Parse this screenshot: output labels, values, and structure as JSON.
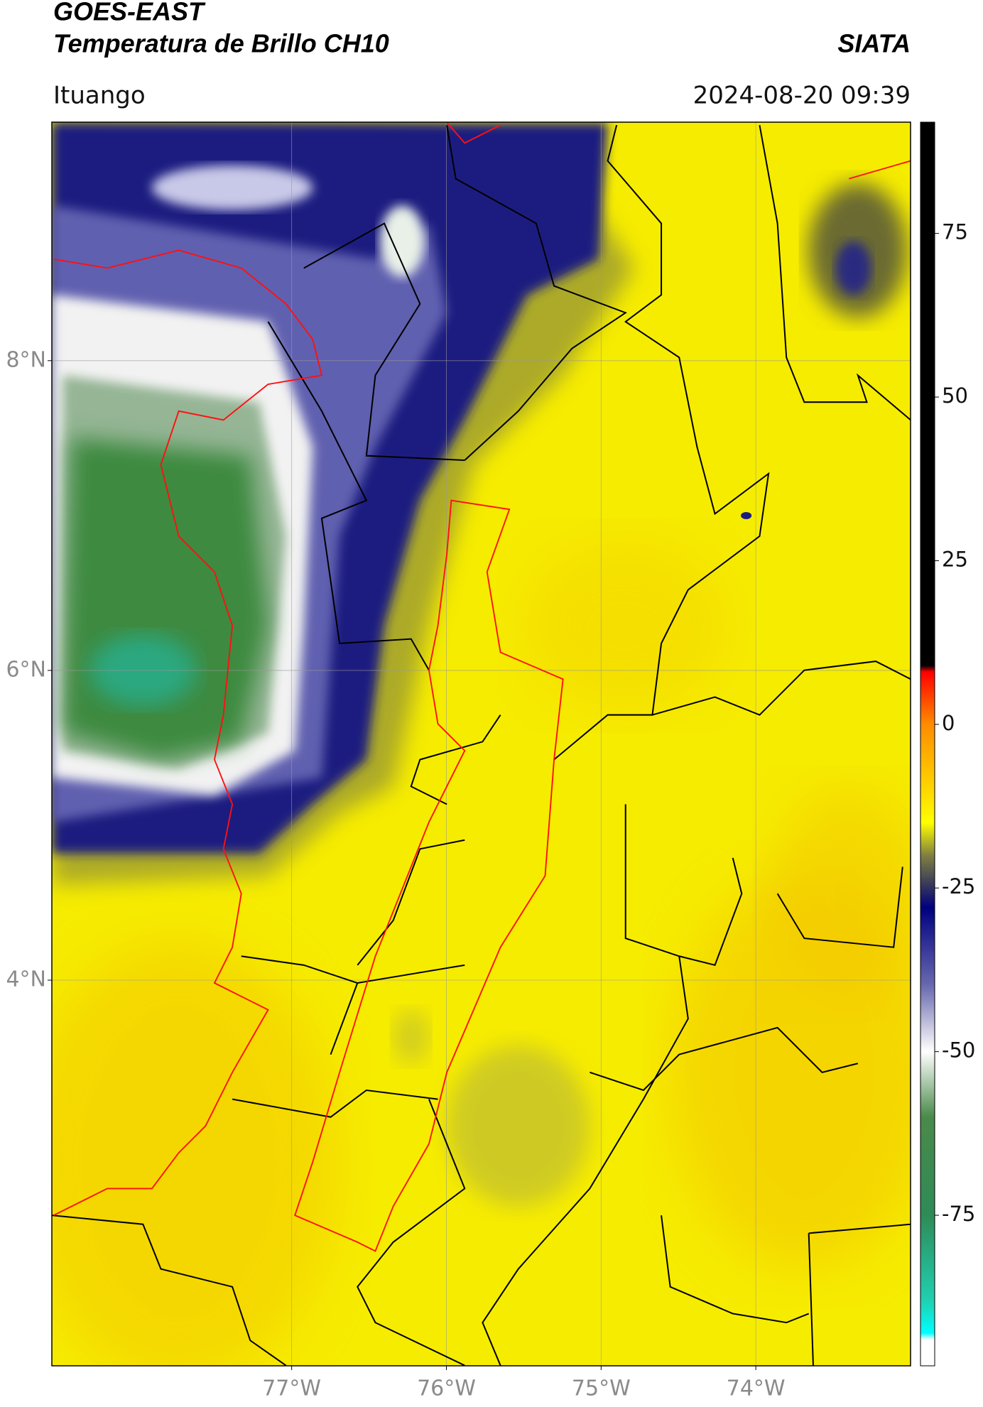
{
  "chart_data": {
    "type": "map",
    "title": "GOES-EAST",
    "subtitle": "Temperatura de Brillo CH10",
    "source": "SIATA",
    "location": "Ituango",
    "datetime": "2024-08-20 09:39",
    "xlim": [
      -78.55,
      -73.0
    ],
    "ylim": [
      1.51,
      9.54
    ],
    "xticks": [
      {
        "value": -77,
        "label": "77°W"
      },
      {
        "value": -76,
        "label": "76°W"
      },
      {
        "value": -75,
        "label": "75°W"
      },
      {
        "value": -74,
        "label": "74°W"
      }
    ],
    "yticks": [
      {
        "value": 8,
        "label": "8°N"
      },
      {
        "value": 6,
        "label": "6°N"
      },
      {
        "value": 4,
        "label": "4°N"
      }
    ],
    "grid": true,
    "clim": [
      -98,
      92
    ],
    "cticks": [
      75,
      50,
      25,
      0,
      -25,
      -50,
      -75
    ],
    "colormap": [
      {
        "value": 92,
        "color": "#000000"
      },
      {
        "value": 9,
        "color": "#000000"
      },
      {
        "value": 8,
        "color": "#ff0000"
      },
      {
        "value": 0,
        "color": "#ff8c00"
      },
      {
        "value": -10,
        "color": "#ffd700"
      },
      {
        "value": -15,
        "color": "#ffff00"
      },
      {
        "value": -20,
        "color": "#808040"
      },
      {
        "value": -25,
        "color": "#303060"
      },
      {
        "value": -28,
        "color": "#000080"
      },
      {
        "value": -40,
        "color": "#6a6ab0"
      },
      {
        "value": -50,
        "color": "#ffffff"
      },
      {
        "value": -60,
        "color": "#4a8a4a"
      },
      {
        "value": -75,
        "color": "#2e8b57"
      },
      {
        "value": -88,
        "color": "#20d0b0"
      },
      {
        "value": -93,
        "color": "#00ffff"
      },
      {
        "value": -94,
        "color": "#ffffff"
      },
      {
        "value": -98,
        "color": "#ffffff"
      }
    ]
  }
}
